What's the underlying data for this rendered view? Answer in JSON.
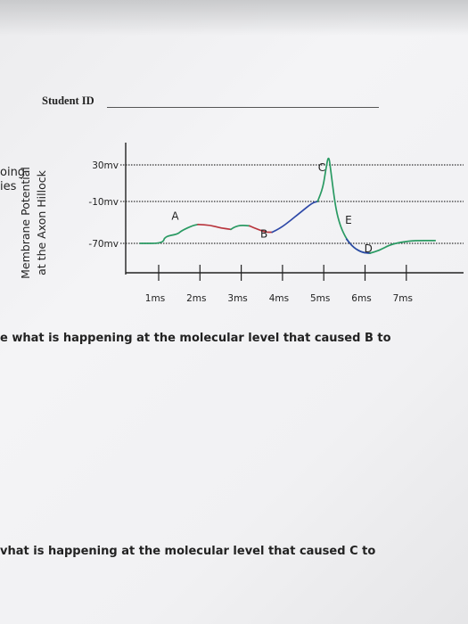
{
  "header": {
    "student_id_label": "Student ID"
  },
  "cropped_left_text": [
    "oing",
    "ies"
  ],
  "chart_data": {
    "type": "line",
    "ylabel_lines": [
      "Membrane Potential",
      "at the Axon Hillock"
    ],
    "xlabel": "",
    "y_ticks": [
      {
        "value": 30,
        "label": "30mv"
      },
      {
        "value": -10,
        "label": "-10mv"
      },
      {
        "value": -70,
        "label": "-70mv"
      }
    ],
    "x_ticks": [
      {
        "value": 1,
        "label": "1ms"
      },
      {
        "value": 2,
        "label": "2ms"
      },
      {
        "value": 3,
        "label": "3ms"
      },
      {
        "value": 4,
        "label": "4ms"
      },
      {
        "value": 5,
        "label": "5ms"
      },
      {
        "value": 6,
        "label": "6ms"
      },
      {
        "value": 7,
        "label": "7ms"
      }
    ],
    "series": [
      {
        "color": "#2a9a63",
        "points": [
          [
            0.55,
            -70
          ],
          [
            1.1,
            -70
          ],
          [
            1.15,
            -60
          ],
          [
            1.45,
            -57
          ],
          [
            1.55,
            -52
          ],
          [
            1.8,
            -45
          ],
          [
            1.95,
            -43
          ]
        ]
      },
      {
        "color": "#b8343c",
        "points": [
          [
            1.95,
            -43
          ],
          [
            2.25,
            -44
          ],
          [
            2.5,
            -48
          ],
          [
            2.75,
            -50
          ]
        ]
      },
      {
        "color": "#2a9a63",
        "points": [
          [
            2.75,
            -50
          ],
          [
            2.85,
            -46
          ],
          [
            3.0,
            -44
          ],
          [
            3.2,
            -45
          ]
        ]
      },
      {
        "color": "#b8343c",
        "points": [
          [
            3.2,
            -45
          ],
          [
            3.4,
            -50
          ],
          [
            3.6,
            -54
          ],
          [
            3.75,
            -54
          ]
        ]
      },
      {
        "color": "#2e49a8",
        "points": [
          [
            3.75,
            -54
          ],
          [
            3.95,
            -48
          ],
          [
            4.2,
            -37
          ],
          [
            4.45,
            -25
          ],
          [
            4.72,
            -12
          ],
          [
            4.85,
            -10
          ]
        ]
      },
      {
        "color": "#2a9a63",
        "points": [
          [
            4.85,
            -10
          ],
          [
            4.98,
            5
          ],
          [
            5.05,
            25
          ],
          [
            5.12,
            42
          ],
          [
            5.18,
            20
          ],
          [
            5.25,
            -5
          ],
          [
            5.32,
            -28
          ],
          [
            5.42,
            -48
          ],
          [
            5.55,
            -64
          ],
          [
            5.72,
            -76
          ],
          [
            5.92,
            -83
          ],
          [
            6.12,
            -84
          ]
        ]
      },
      {
        "color": "#2e49a8",
        "points": [
          [
            5.55,
            -64
          ],
          [
            5.72,
            -76
          ],
          [
            5.92,
            -83
          ],
          [
            6.12,
            -84
          ]
        ]
      },
      {
        "color": "#2a9a63",
        "points": [
          [
            6.12,
            -84
          ],
          [
            6.35,
            -80
          ],
          [
            6.6,
            -72
          ],
          [
            6.9,
            -68
          ],
          [
            7.2,
            -66
          ],
          [
            7.7,
            -66
          ]
        ]
      }
    ],
    "annotations": [
      {
        "text": "A",
        "x": 1.4,
        "y": -36
      },
      {
        "text": "B",
        "x": 3.55,
        "y": -62
      },
      {
        "text": "C",
        "x": 4.95,
        "y": 23
      },
      {
        "text": "D",
        "x": 6.08,
        "y": -83
      },
      {
        "text": "E",
        "x": 5.6,
        "y": -42
      }
    ]
  },
  "questions": [
    "e what is happening at the molecular level that caused B to",
    "vhat is happening at the molecular level that caused C to"
  ]
}
